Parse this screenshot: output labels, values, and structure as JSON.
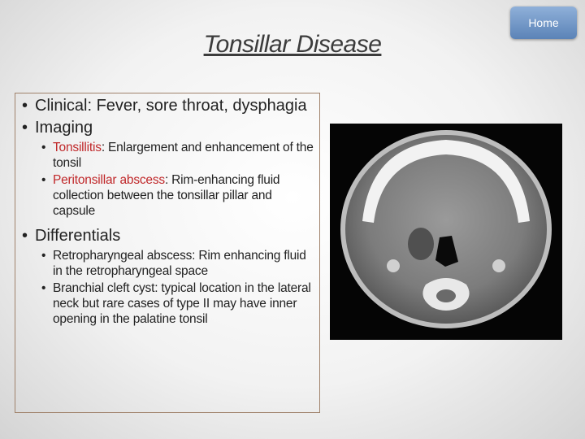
{
  "header": {
    "title": "Tonsillar Disease"
  },
  "nav": {
    "home": "Home"
  },
  "content": {
    "items": [
      {
        "text": "Clinical: Fever, sore throat, dysphagia"
      },
      {
        "text": "Imaging",
        "subitems": [
          {
            "term": "Tonsillitis",
            "text": ": Enlargement and enhancement of the tonsil"
          },
          {
            "term": "Peritonsillar abscess",
            "text": ": Rim-enhancing fluid collection between the tonsillar pillar and capsule"
          }
        ]
      },
      {
        "text": "Differentials",
        "subitems": [
          {
            "text": "Retropharyngeal abscess: Rim enhancing fluid in the retropharyngeal space"
          },
          {
            "text": "Branchial cleft cyst: typical location in the lateral neck but rare cases of type II may have inner opening in the palatine tonsil"
          }
        ]
      }
    ]
  }
}
